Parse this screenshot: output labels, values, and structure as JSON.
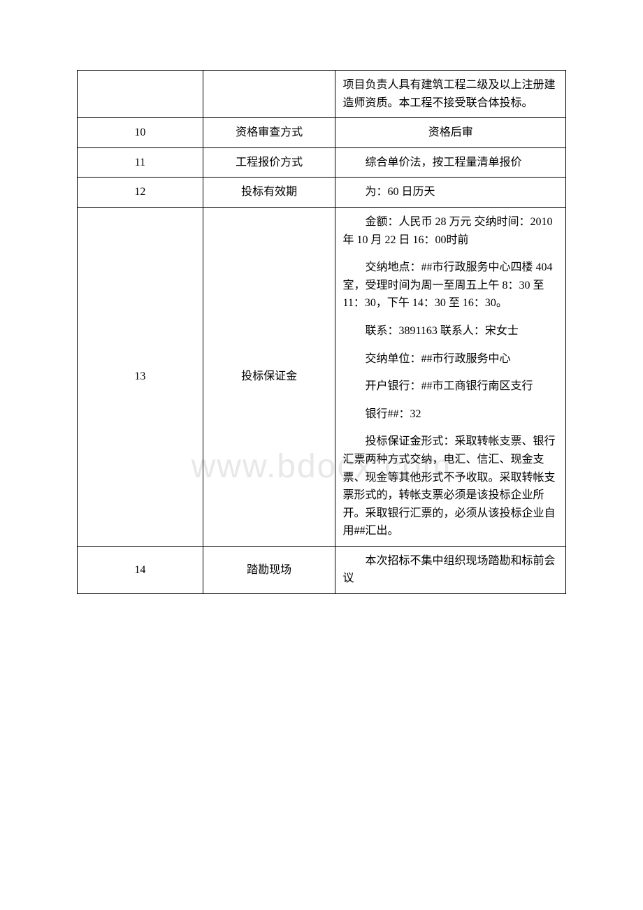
{
  "watermark": "www.bdocx.com",
  "rows": [
    {
      "num": "",
      "label": "",
      "content": [
        "项目负责人具有建筑工程二级及以上注册建造师资质。本工程不接受联合体投标。"
      ],
      "noIndent": true
    },
    {
      "num": "10",
      "label": "资格审查方式",
      "content": [
        "资格后审"
      ],
      "singleLine": true
    },
    {
      "num": "11",
      "label": "工程报价方式",
      "content": [
        "综合单价法，按工程量清单报价"
      ]
    },
    {
      "num": "12",
      "label": "投标有效期",
      "content": [
        "为：60 日历天"
      ]
    },
    {
      "num": "13",
      "label": "投标保证金",
      "content": [
        "金额：人民币 28 万元 交纳时间：2010年 10 月 22 日 16：00时前",
        "交纳地点：##市行政服务中心四楼 404 室，受理时间为周一至周五上午 8：30 至 11：30，下午 14：30 至 16：30。",
        "联系：3891163 联系人：宋女士",
        "交纳单位：##市行政服务中心",
        "开户银行：##市工商银行南区支行",
        "银行##：32",
        "投标保证金形式：采取转帐支票、银行汇票两种方式交纳，电汇、信汇、现金支票、现金等其他形式不予收取。采取转帐支票形式的，转帐支票必须是该投标企业所开。采取银行汇票的，必须从该投标企业自用##汇出。"
      ]
    },
    {
      "num": "14",
      "label": "踏勘现场",
      "content": [
        "本次招标不集中组织现场踏勘和标前会议"
      ]
    }
  ]
}
